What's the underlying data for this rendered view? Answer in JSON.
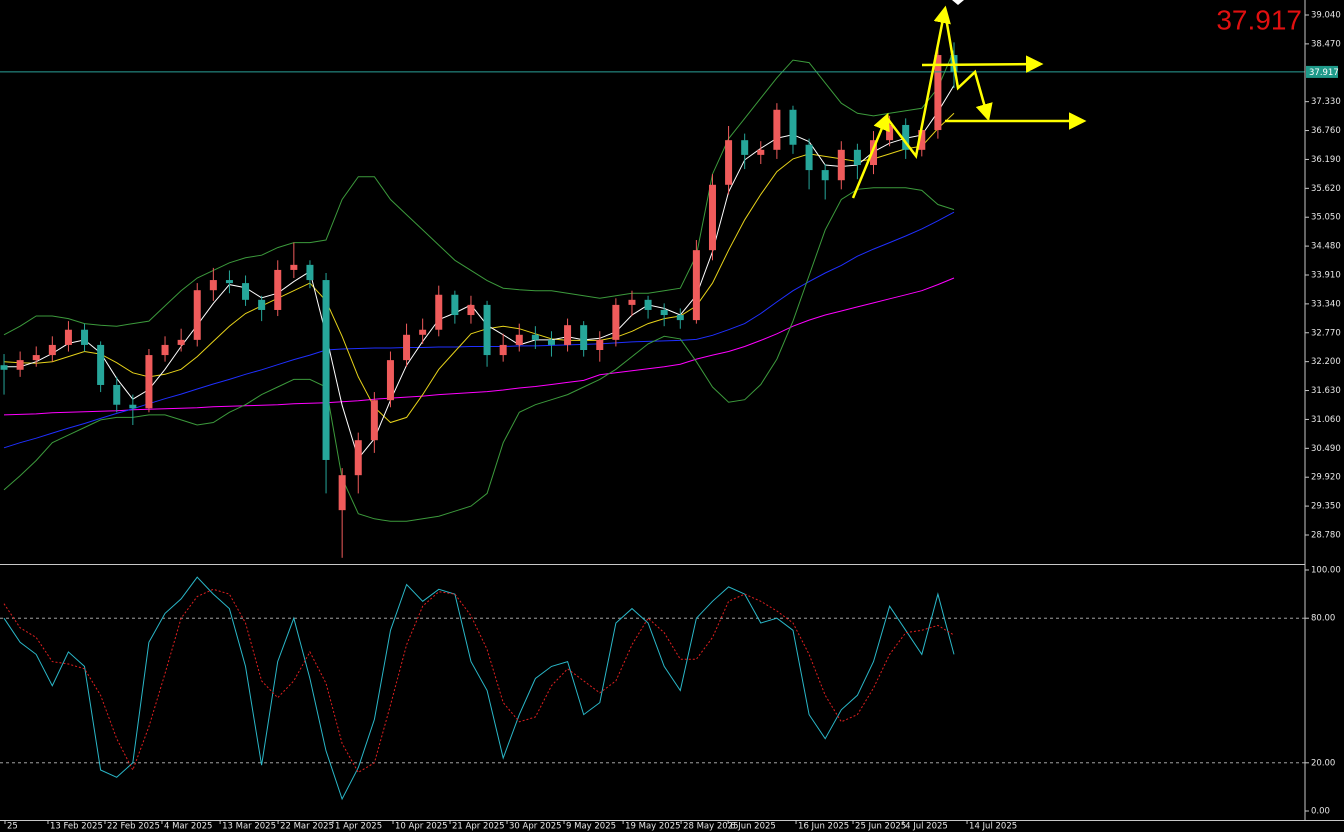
{
  "chart_data": [
    {
      "type": "candlestick",
      "categories": [
        null,
        null,
        null,
        null,
        null,
        null,
        null,
        null,
        null,
        null,
        null,
        null,
        null,
        null,
        null,
        null,
        null,
        null,
        null,
        null,
        null,
        null,
        null,
        null,
        null,
        null,
        null,
        null,
        null,
        null,
        null,
        null,
        null,
        null,
        null,
        null,
        null,
        null,
        null,
        null,
        null,
        null,
        null,
        null,
        null,
        null,
        null,
        null,
        null,
        null,
        null,
        null,
        null,
        null,
        null,
        null,
        null,
        null,
        null,
        null
      ],
      "open": [
        32.13,
        32.04,
        32.23,
        32.33,
        32.53,
        32.83,
        32.53,
        31.74,
        31.35,
        31.28,
        32.33,
        32.53,
        32.63,
        33.61,
        33.81,
        33.75,
        33.42,
        33.22,
        34.01,
        34.11,
        33.81,
        29.27,
        29.96,
        30.65,
        31.44,
        32.23,
        32.73,
        32.83,
        33.52,
        33.12,
        33.32,
        32.33,
        32.53,
        32.73,
        32.63,
        32.53,
        32.92,
        32.43,
        32.63,
        33.32,
        33.42,
        33.22,
        33.12,
        33.02,
        34.4,
        35.69,
        36.57,
        36.28,
        36.38,
        37.17,
        36.48,
        35.98,
        35.78,
        36.38,
        36.08,
        36.57,
        36.87,
        36.38,
        36.77,
        38.25
      ],
      "high": [
        32.35,
        32.4,
        32.5,
        32.7,
        33.0,
        32.95,
        32.6,
        31.9,
        31.55,
        32.45,
        32.7,
        32.85,
        33.75,
        34.05,
        34.0,
        33.9,
        33.5,
        34.2,
        34.55,
        34.2,
        33.95,
        30.1,
        30.8,
        31.6,
        32.4,
        32.95,
        33.05,
        33.7,
        33.6,
        33.5,
        33.4,
        32.75,
        32.95,
        32.9,
        32.8,
        33.05,
        33.0,
        32.8,
        33.45,
        33.6,
        33.5,
        33.35,
        33.25,
        34.6,
        35.9,
        36.85,
        36.7,
        36.55,
        37.3,
        37.25,
        36.6,
        36.1,
        36.55,
        36.5,
        36.75,
        37.05,
        37.0,
        36.9,
        38.45,
        38.5
      ],
      "low": [
        31.55,
        31.9,
        32.1,
        32.2,
        32.4,
        32.4,
        31.6,
        31.2,
        30.95,
        31.2,
        32.2,
        32.4,
        32.5,
        33.4,
        33.55,
        33.3,
        33.0,
        33.1,
        33.85,
        33.65,
        29.6,
        28.33,
        29.6,
        30.4,
        31.3,
        32.1,
        32.55,
        32.7,
        32.95,
        32.95,
        32.1,
        32.2,
        32.4,
        32.45,
        32.3,
        32.4,
        32.3,
        32.2,
        32.5,
        33.1,
        33.05,
        32.9,
        32.85,
        32.95,
        34.2,
        35.5,
        36.0,
        36.1,
        36.2,
        36.3,
        35.6,
        35.4,
        35.6,
        35.8,
        35.9,
        36.45,
        36.2,
        36.25,
        36.6,
        37.6
      ],
      "close": [
        32.04,
        32.23,
        32.33,
        32.53,
        32.83,
        32.53,
        31.74,
        31.35,
        31.28,
        32.33,
        32.53,
        32.63,
        33.61,
        33.81,
        33.75,
        33.42,
        33.22,
        34.01,
        34.11,
        33.81,
        30.26,
        29.96,
        30.65,
        31.44,
        32.23,
        32.73,
        32.83,
        33.52,
        33.12,
        33.32,
        32.33,
        32.53,
        32.73,
        32.63,
        32.53,
        32.92,
        32.43,
        32.63,
        33.32,
        33.42,
        33.22,
        33.12,
        33.02,
        34.4,
        35.69,
        36.57,
        36.28,
        36.38,
        37.17,
        36.48,
        35.98,
        35.78,
        36.38,
        36.08,
        36.57,
        36.87,
        36.38,
        36.77,
        38.25,
        37.92
      ],
      "up_color": "#ef5b5b",
      "down_color": "#26a69a",
      "series": [
        {
          "color": "#ff00ff",
          "values": [
            31.15,
            31.16,
            31.17,
            31.19,
            31.2,
            31.21,
            31.22,
            31.23,
            31.25,
            31.26,
            31.27,
            31.28,
            31.29,
            31.31,
            31.32,
            31.33,
            31.34,
            31.35,
            31.37,
            31.38,
            31.39,
            31.41,
            31.43,
            31.46,
            31.48,
            31.5,
            31.52,
            31.55,
            31.57,
            31.59,
            31.61,
            31.64,
            31.68,
            31.71,
            31.75,
            31.79,
            31.83,
            31.94,
            31.98,
            32.02,
            32.06,
            32.1,
            32.15,
            32.25,
            32.33,
            32.4,
            32.5,
            32.62,
            32.75,
            32.9,
            33.02,
            33.12,
            33.2,
            33.28,
            33.36,
            33.44,
            33.52,
            33.6,
            33.72,
            33.85
          ]
        },
        {
          "color": "#1f2fff",
          "values": [
            30.5,
            30.6,
            30.69,
            30.79,
            30.89,
            30.98,
            31.08,
            31.18,
            31.27,
            31.37,
            31.47,
            31.56,
            31.66,
            31.76,
            31.85,
            31.95,
            32.04,
            32.14,
            32.24,
            32.33,
            32.43,
            32.45,
            32.46,
            32.47,
            32.47,
            32.48,
            32.48,
            32.49,
            32.49,
            32.5,
            32.5,
            32.5,
            32.51,
            32.51,
            32.52,
            32.53,
            32.54,
            32.55,
            32.57,
            32.59,
            32.6,
            32.61,
            32.62,
            32.64,
            32.72,
            32.83,
            32.95,
            33.15,
            33.38,
            33.6,
            33.78,
            33.95,
            34.1,
            34.28,
            34.42,
            34.55,
            34.68,
            34.82,
            34.98,
            35.15
          ]
        },
        {
          "color": "#3c9a3c",
          "values": [
            32.73,
            32.9,
            33.1,
            33.1,
            33.05,
            32.95,
            32.92,
            32.9,
            32.95,
            33.0,
            33.3,
            33.6,
            33.85,
            34.0,
            34.15,
            34.25,
            34.3,
            34.45,
            34.55,
            34.55,
            34.6,
            35.4,
            35.85,
            35.85,
            35.4,
            35.1,
            34.8,
            34.5,
            34.2,
            34.0,
            33.8,
            33.65,
            33.62,
            33.6,
            33.6,
            33.55,
            33.5,
            33.45,
            33.5,
            33.55,
            33.55,
            33.6,
            33.65,
            34.3,
            35.9,
            36.6,
            37.0,
            37.4,
            37.8,
            38.15,
            38.1,
            37.7,
            37.3,
            37.1,
            37.05,
            37.1,
            37.15,
            37.2,
            37.6,
            38.35
          ]
        },
        {
          "color": "#3c9a3c",
          "values": [
            29.67,
            29.95,
            30.25,
            30.6,
            30.75,
            30.9,
            31.05,
            31.1,
            31.1,
            31.15,
            31.15,
            31.05,
            30.95,
            31.0,
            31.2,
            31.35,
            31.55,
            31.7,
            31.85,
            31.85,
            31.7,
            29.9,
            29.2,
            29.1,
            29.05,
            29.05,
            29.1,
            29.15,
            29.25,
            29.35,
            29.6,
            30.6,
            31.2,
            31.35,
            31.45,
            31.55,
            31.7,
            31.85,
            32.05,
            32.3,
            32.55,
            32.7,
            32.65,
            32.2,
            31.7,
            31.4,
            31.45,
            31.75,
            32.25,
            33.0,
            33.9,
            34.8,
            35.4,
            35.6,
            35.63,
            35.63,
            35.63,
            35.58,
            35.3,
            35.2
          ]
        },
        {
          "color": "#e6d21a",
          "values": [
            32.2,
            32.18,
            32.17,
            32.2,
            32.3,
            32.4,
            32.35,
            32.18,
            31.98,
            31.9,
            31.95,
            32.05,
            32.3,
            32.6,
            32.9,
            33.15,
            33.3,
            33.45,
            33.6,
            33.75,
            33.4,
            32.7,
            31.9,
            31.3,
            31.0,
            31.1,
            31.55,
            32.05,
            32.4,
            32.75,
            32.85,
            32.9,
            32.85,
            32.75,
            32.65,
            32.62,
            32.62,
            32.62,
            32.68,
            32.8,
            32.95,
            33.05,
            33.1,
            33.3,
            33.75,
            34.4,
            35.0,
            35.5,
            35.95,
            36.2,
            36.3,
            36.25,
            36.2,
            36.15,
            36.2,
            36.3,
            36.4,
            36.45,
            36.8,
            37.1
          ]
        },
        {
          "color": "#ffffff",
          "values": [
            32.1,
            32.1,
            32.2,
            32.36,
            32.56,
            32.63,
            32.37,
            31.87,
            31.46,
            31.65,
            32.05,
            32.5,
            32.92,
            33.35,
            33.72,
            33.66,
            33.46,
            33.55,
            33.78,
            33.98,
            32.73,
            31.34,
            30.29,
            30.68,
            31.44,
            32.13,
            32.6,
            33.03,
            33.16,
            33.32,
            32.92,
            32.73,
            32.53,
            32.63,
            32.63,
            32.69,
            32.63,
            32.66,
            32.79,
            33.12,
            33.32,
            33.25,
            33.12,
            33.51,
            34.37,
            35.55,
            36.18,
            36.41,
            36.61,
            36.68,
            36.54,
            36.08,
            36.05,
            36.08,
            36.34,
            36.51,
            36.61,
            36.67,
            37.13,
            37.65
          ]
        }
      ],
      "xlim": [
        -0.25,
        80.8
      ],
      "xticks": [
        {
          "value": 0.06,
          "label": "25"
        },
        {
          "value": 2.73,
          "label": "13 Feb 2025"
        },
        {
          "value": 6.27,
          "label": "22 Feb 2025"
        },
        {
          "value": 9.81,
          "label": "4 Mar 2025"
        },
        {
          "value": 13.42,
          "label": "13 Mar 2025"
        },
        {
          "value": 17.02,
          "label": "22 Mar 2025"
        },
        {
          "value": 20.43,
          "label": "1 Apr 2025"
        },
        {
          "value": 24.16,
          "label": "10 Apr 2025"
        },
        {
          "value": 27.7,
          "label": "21 Apr 2025"
        },
        {
          "value": 31.24,
          "label": "30 Apr 2025"
        },
        {
          "value": 34.78,
          "label": "9 May 2025"
        },
        {
          "value": 38.45,
          "label": "19 May 2025"
        },
        {
          "value": 42.05,
          "label": "28 May 2025"
        },
        {
          "value": 44.97,
          "label": "6 Jun 2025"
        },
        {
          "value": 49.19,
          "label": "16 Jun 2025"
        },
        {
          "value": 52.73,
          "label": "25 Jun 2025"
        },
        {
          "value": 55.84,
          "label": "4 Jul 2025"
        },
        {
          "value": 59.81,
          "label": "14 Jul 2025"
        }
      ],
      "ylim": [
        28.247,
        39.336
      ],
      "yticks": [
        {
          "value": 39.04,
          "label": "39.040"
        },
        {
          "value": 38.47,
          "label": "38.470"
        },
        {
          "value": 37.33,
          "label": "37.330"
        },
        {
          "value": 36.76,
          "label": "36.760"
        },
        {
          "value": 36.19,
          "label": "36.190"
        },
        {
          "value": 35.62,
          "label": "35.620"
        },
        {
          "value": 35.05,
          "label": "35.050"
        },
        {
          "value": 34.48,
          "label": "34.480"
        },
        {
          "value": 33.91,
          "label": "33.910"
        },
        {
          "value": 33.34,
          "label": "33.340"
        },
        {
          "value": 32.77,
          "label": "32.770"
        },
        {
          "value": 32.2,
          "label": "32.200"
        },
        {
          "value": 31.63,
          "label": "31.630"
        },
        {
          "value": 31.06,
          "label": "31.060"
        },
        {
          "value": 30.49,
          "label": "30.490"
        },
        {
          "value": 29.92,
          "label": "29.920"
        },
        {
          "value": 29.35,
          "label": "29.350"
        },
        {
          "value": 28.78,
          "label": "28.780"
        }
      ],
      "current_price": {
        "value": 37.917,
        "label": "37.917"
      }
    },
    {
      "type": "stochastic",
      "series": [
        {
          "color": "#2ab7c8",
          "values": [
            80,
            70,
            65,
            52,
            66,
            60,
            17,
            14,
            20,
            70,
            82,
            88,
            97,
            90,
            84,
            60,
            19,
            62,
            80,
            55,
            25,
            5,
            18,
            38,
            75,
            94,
            87,
            92,
            90,
            62,
            50,
            22,
            40,
            55,
            60,
            62,
            40,
            45,
            78,
            84,
            78,
            60,
            50,
            80,
            87,
            93,
            90,
            78,
            80,
            75,
            40,
            30,
            42,
            48,
            62,
            85,
            75,
            65,
            90,
            65
          ]
        },
        {
          "color": "#e02020",
          "dashed": true,
          "values": [
            86,
            76,
            72,
            62,
            61,
            59,
            48,
            30,
            17,
            35,
            57,
            80,
            89,
            92,
            90,
            78,
            54,
            47,
            54,
            66,
            53,
            28,
            16,
            20,
            44,
            69,
            85,
            91,
            90,
            81,
            67,
            45,
            37,
            39,
            52,
            59,
            54,
            49,
            54,
            69,
            80,
            74,
            63,
            63,
            72,
            87,
            90,
            87,
            83,
            78,
            65,
            48,
            37,
            40,
            51,
            65,
            74,
            75,
            77,
            73
          ]
        }
      ],
      "ylim": [
        -3.73,
        101.66
      ],
      "yticks": [
        {
          "value": 100,
          "label": "100.00"
        },
        {
          "value": 80,
          "label": "80.00"
        },
        {
          "value": 20,
          "label": "20.00"
        },
        {
          "value": 0,
          "label": "0.00"
        }
      ],
      "dashed_levels": [
        80,
        20
      ]
    }
  ]
}
